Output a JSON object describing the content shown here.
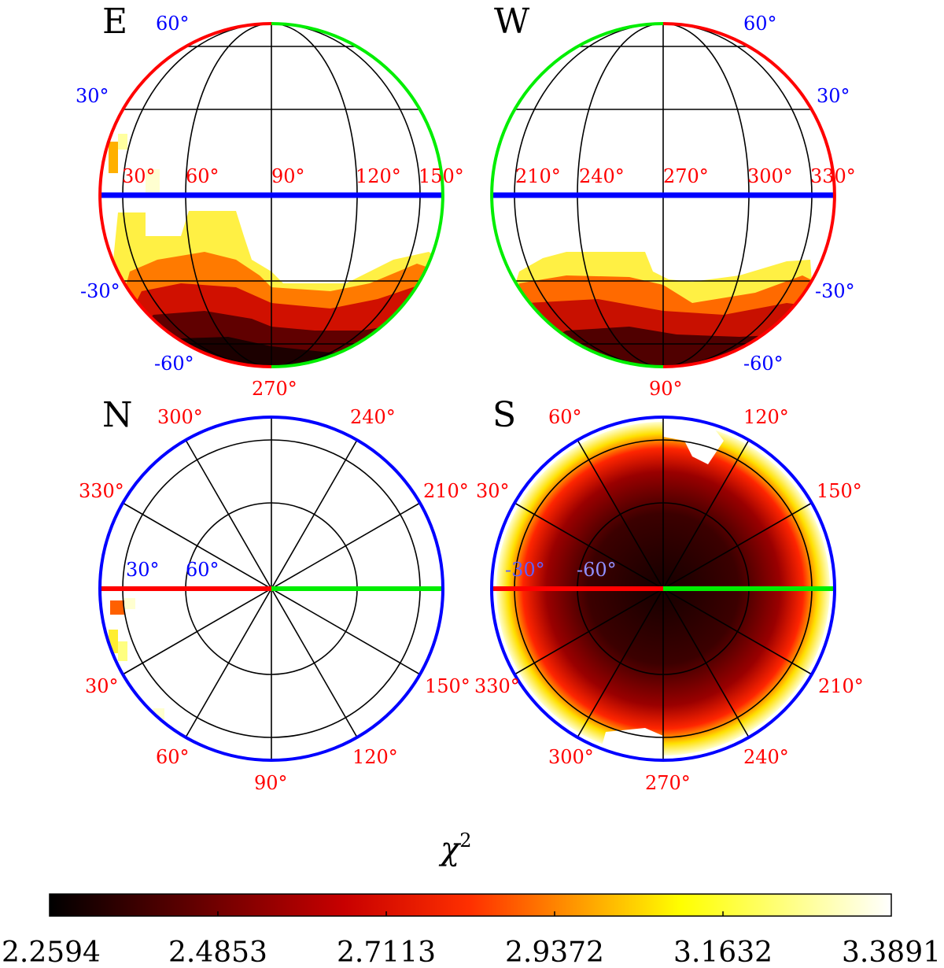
{
  "chart_data": {
    "type": "heatmap",
    "title": "",
    "colorbar": {
      "label": "χ",
      "label_superscript": "2",
      "min": 2.2594,
      "max": 3.3891,
      "ticks": [
        "2.2594",
        "2.4853",
        "2.7113",
        "2.9372",
        "3.1632",
        "3.3891"
      ],
      "colormap": "hot (black - red - yellow - white)"
    },
    "panels": [
      {
        "name": "E",
        "projection": "orthographic-side",
        "central_longitude": 90,
        "latitude_labels": [
          "60°",
          "30°",
          "-30°",
          "-60°"
        ],
        "longitude_labels": [
          "30°",
          "60°",
          "90°",
          "120°",
          "150°"
        ],
        "bottom_label": "270°",
        "description": "low chi-squared values concentrated near the southern pole (latitude -60 to -90)"
      },
      {
        "name": "W",
        "projection": "orthographic-side",
        "central_longitude": 270,
        "latitude_labels": [
          "60°",
          "30°",
          "-30°",
          "-60°"
        ],
        "longitude_labels": [
          "210°",
          "240°",
          "270°",
          "300°",
          "330°"
        ],
        "bottom_label": "90°",
        "description": "low chi-squared values concentrated below latitude -30"
      },
      {
        "name": "N",
        "projection": "polar-north",
        "latitude_labels": [
          "30°",
          "60°"
        ],
        "longitude_labels": [
          "300°",
          "240°",
          "330°",
          "210°",
          "30°",
          "150°",
          "60°",
          "120°",
          "90°"
        ],
        "description": "only a few high values near the rim at longitude ~0"
      },
      {
        "name": "S",
        "projection": "polar-south",
        "latitude_labels": [
          "-30°",
          "-60°"
        ],
        "longitude_labels": [
          "60°",
          "120°",
          "30°",
          "150°",
          "330°",
          "210°",
          "300°",
          "240°",
          "270°"
        ],
        "description": "lowest chi-squared values fill almost the whole southern hemisphere"
      }
    ]
  },
  "colors": {
    "meridian_red": "#ff0000",
    "meridian_green": "#00ff00",
    "equator_blue": "#0000ff",
    "lat_label": "#0000ff",
    "lon_label": "#ff0000",
    "grid": "#000000"
  }
}
